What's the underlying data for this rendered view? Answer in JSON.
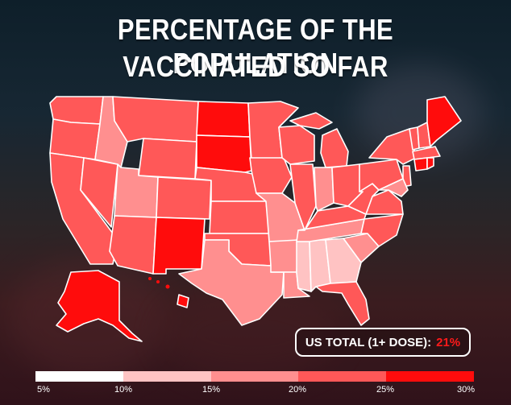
{
  "title": {
    "line1": "PERCENTAGE OF THE POPULATION",
    "line2": "VACCINATED SO FAR"
  },
  "total": {
    "label": "US TOTAL (1+ DOSE):",
    "value": "21%"
  },
  "legend": {
    "ticks": [
      "5%",
      "10%",
      "15%",
      "20%",
      "25%",
      "30%"
    ],
    "bin_colors": [
      "#ffffff",
      "#ffc3c3",
      "#ff8f8f",
      "#ff5858",
      "#ff0c0c"
    ]
  },
  "colors": {
    "tier1": "#ffc3c3",
    "tier2": "#ff8f8f",
    "tier3": "#ff5858",
    "tier4": "#ff0c0c"
  }
}
